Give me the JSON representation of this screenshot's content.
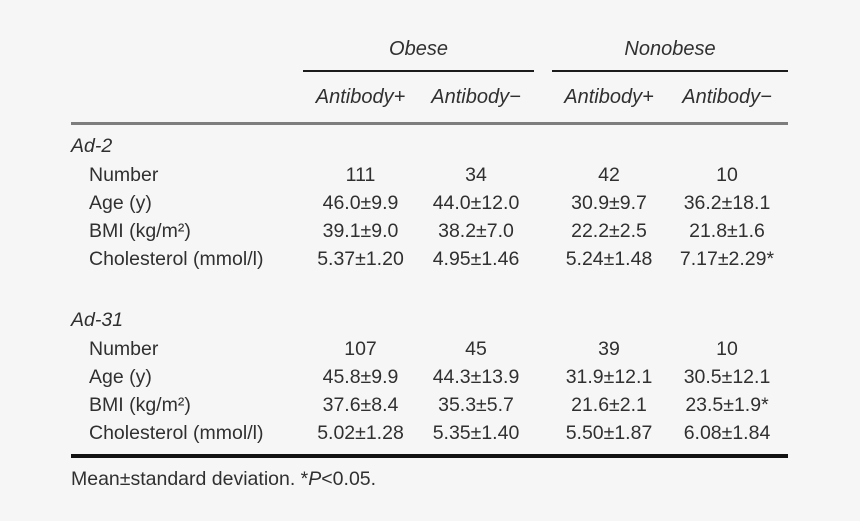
{
  "colors": {
    "background": "#f6f6f6",
    "text": "#303030",
    "rule_spanner_black": "#1c1c1c",
    "rule_header_gray": "#7d7d7d",
    "rule_bottom_black": "#121212"
  },
  "table": {
    "group_headers": [
      {
        "label": "Obese"
      },
      {
        "label": "Nonobese"
      }
    ],
    "column_headers": [
      "Antibody+",
      "Antibody−",
      "Antibody+",
      "Antibody−"
    ],
    "sections": [
      {
        "title": "Ad-2",
        "rows": [
          {
            "label": "Number",
            "values": [
              "111",
              "34",
              "42",
              "10"
            ]
          },
          {
            "label": "Age (y)",
            "values": [
              "46.0±9.9",
              "44.0±12.0",
              "30.9±9.7",
              "36.2±18.1"
            ]
          },
          {
            "label": "BMI (kg/m²)",
            "values": [
              "39.1±9.0",
              "38.2±7.0",
              "22.2±2.5",
              "21.8±1.6"
            ]
          },
          {
            "label": "Cholesterol (mmol/l)",
            "values": [
              "5.37±1.20",
              "4.95±1.46",
              "5.24±1.48",
              "7.17±2.29*"
            ]
          }
        ]
      },
      {
        "title": "Ad-31",
        "rows": [
          {
            "label": "Number",
            "values": [
              "107",
              "45",
              "39",
              "10"
            ]
          },
          {
            "label": "Age (y)",
            "values": [
              "45.8±9.9",
              "44.3±13.9",
              "31.9±12.1",
              "30.5±12.1"
            ]
          },
          {
            "label": "BMI (kg/m²)",
            "values": [
              "37.6±8.4",
              "35.3±5.7",
              "21.6±2.1",
              "23.5±1.9*"
            ]
          },
          {
            "label": "Cholesterol (mmol/l)",
            "values": [
              "5.02±1.28",
              "5.35±1.40",
              "5.50±1.87",
              "6.08±1.84"
            ]
          }
        ]
      }
    ],
    "footnote": {
      "prefix": "Mean±standard deviation. *",
      "italic": "P",
      "suffix": "<0.05."
    }
  }
}
